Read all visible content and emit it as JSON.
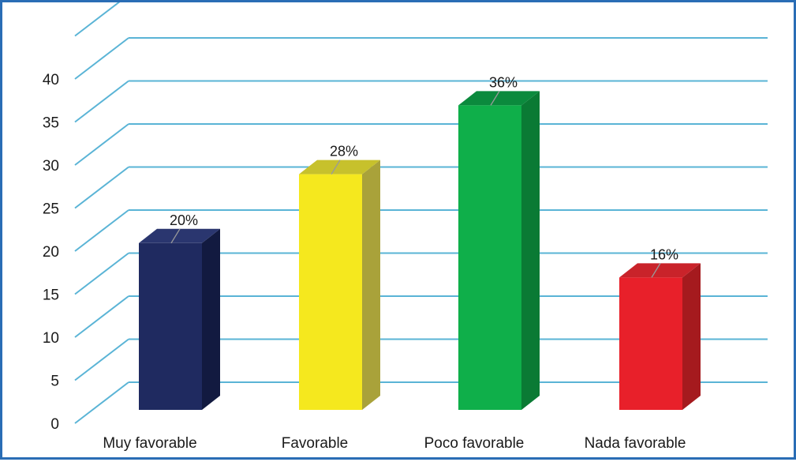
{
  "chart_data": {
    "type": "bar",
    "categories": [
      "Muy favorable",
      "Favorable",
      "Poco favorable",
      "Nada favorable"
    ],
    "values": [
      20,
      28,
      36,
      16
    ],
    "data_labels": [
      "20%",
      "28%",
      "36%",
      "16%"
    ],
    "y_ticks": [
      "0",
      "5",
      "10",
      "15",
      "20",
      "25",
      "30",
      "35",
      "40"
    ],
    "ylim": [
      0,
      45
    ],
    "grid": true,
    "legend": "none",
    "style": "3d",
    "colors": {
      "frame": "#2a6db5",
      "grid": "#5ab4d6",
      "bars": [
        "#1f2a60",
        "#f5e81e",
        "#0faf4a",
        "#e8202a"
      ],
      "bar_sides": [
        "#121a40",
        "#a9a23a",
        "#0a7a34",
        "#a51a1e"
      ],
      "bar_tops": [
        "#2a366f",
        "#c7c12c",
        "#0b8a3d",
        "#c9232a"
      ]
    }
  }
}
